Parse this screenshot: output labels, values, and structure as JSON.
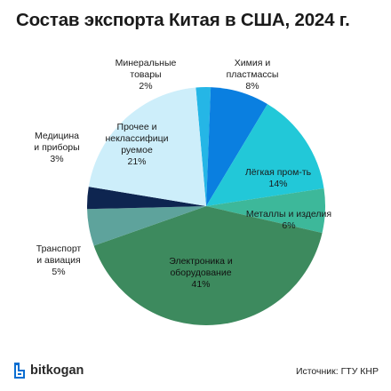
{
  "title": "Состав экспорта Китая в США, 2024 г.",
  "brand": {
    "name": "bitkogan",
    "icon": "bitkogan-logo-icon"
  },
  "source_text": "Источник: ГТУ КНР",
  "chart_data": {
    "type": "pie",
    "title": "Состав экспорта Китая в США, 2024 г.",
    "slices": [
      {
        "label": "Минеральные товары",
        "display": [
          "Минеральные",
          "товары"
        ],
        "value": 2,
        "value_label": "2%",
        "color": "#25b6e6"
      },
      {
        "label": "Химия и пластмассы",
        "display": [
          "Химия и",
          "пластмассы"
        ],
        "value": 8,
        "value_label": "8%",
        "color": "#0a7fe0"
      },
      {
        "label": "Лёгкая пром-ть",
        "display": [
          "Лёгкая пром-ть"
        ],
        "value": 14,
        "value_label": "14%",
        "color": "#22c8d8"
      },
      {
        "label": "Металлы и изделия",
        "display": [
          "Металлы и изделия"
        ],
        "value": 6,
        "value_label": "6%",
        "color": "#3db89a"
      },
      {
        "label": "Электроника и оборудование",
        "display": [
          "Электроника и",
          "оборудование"
        ],
        "value": 41,
        "value_label": "41%",
        "color": "#3d8a5e"
      },
      {
        "label": "Транспорт и авиация",
        "display": [
          "Транспорт",
          "и авиация"
        ],
        "value": 5,
        "value_label": "5%",
        "color": "#5ea39c"
      },
      {
        "label": "Медицина и приборы",
        "display": [
          "Медицина",
          "и приборы"
        ],
        "value": 3,
        "value_label": "3%",
        "color": "#0e2550"
      },
      {
        "label": "Прочее и неклассифицируемое",
        "display": [
          "Прочее и",
          "неклассифици",
          "руемое"
        ],
        "value": 21,
        "value_label": "21%",
        "color": "#cdeefa"
      }
    ],
    "start_angle_deg": -95,
    "direction": "clockwise",
    "legend": "none"
  }
}
